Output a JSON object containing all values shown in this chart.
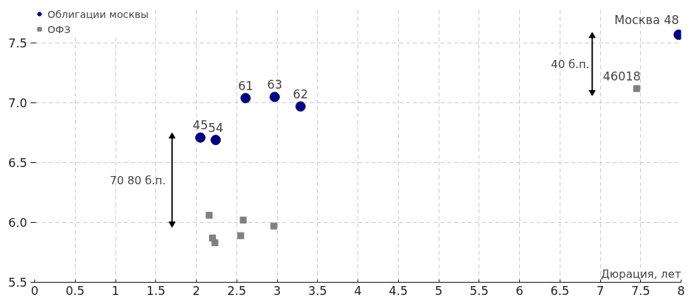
{
  "chart_data": {
    "type": "scatter",
    "xlabel": "Дюрация, лет",
    "xlim": [
      0,
      8
    ],
    "xticks": [
      0,
      0.5,
      1,
      1.5,
      2,
      2.5,
      3,
      3.5,
      4,
      4.5,
      5,
      5.5,
      6,
      6.5,
      7,
      7.5,
      8
    ],
    "ylim": [
      5.5,
      7.8
    ],
    "yticks": [
      5.5,
      {
        "value": 6,
        "label": "6.0"
      },
      6.5,
      {
        "value": 7,
        "label": "7.0"
      },
      7.5
    ],
    "grid": true,
    "legend": "top left",
    "series": [
      {
        "name": "Облигации москвы",
        "color": "#000080",
        "marker": "circle",
        "x": [
          2.05,
          2.24,
          2.61,
          2.97,
          3.29,
          7.97
        ],
        "values": [
          6.71,
          6.69,
          7.04,
          7.05,
          6.97,
          7.57
        ]
      },
      {
        "name": "ОФЗ",
        "color": "#808080",
        "marker": "square",
        "x": [
          2.16,
          2.58,
          2.96,
          2.2,
          2.23,
          2.55,
          7.45
        ],
        "values": [
          6.06,
          6.02,
          5.97,
          5.87,
          5.83,
          5.89,
          7.12
        ]
      },
      {
        "type": "line",
        "color": "#000000",
        "marker": "triangle",
        "x": [
          1.7,
          1.7
        ],
        "values": [
          5.99,
          6.72
        ]
      },
      {
        "type": "line",
        "color": "#000000",
        "marker": "triangle",
        "x": [
          6.9,
          6.9
        ],
        "values": [
          7.09,
          7.56
        ]
      }
    ],
    "annotations": [
      {
        "text": "45",
        "x": 2.05,
        "y": 6.71
      },
      {
        "text": "54",
        "x": 2.24,
        "y": 6.69
      },
      {
        "text": "61",
        "x": 2.61,
        "y": 7.04
      },
      {
        "text": "63",
        "x": 2.97,
        "y": 7.05
      },
      {
        "text": "62",
        "x": 3.29,
        "y": 6.97
      },
      {
        "text": "Москва  48",
        "x": 7.97,
        "y": 7.57
      },
      {
        "text": "46018",
        "x": 7.45,
        "y": 7.12
      },
      {
        "text": "70  80 б.п.",
        "x": 1.7,
        "y": 6.35
      },
      {
        "text": "40 б.п.",
        "x": 6.9,
        "y": 7.32
      }
    ]
  }
}
